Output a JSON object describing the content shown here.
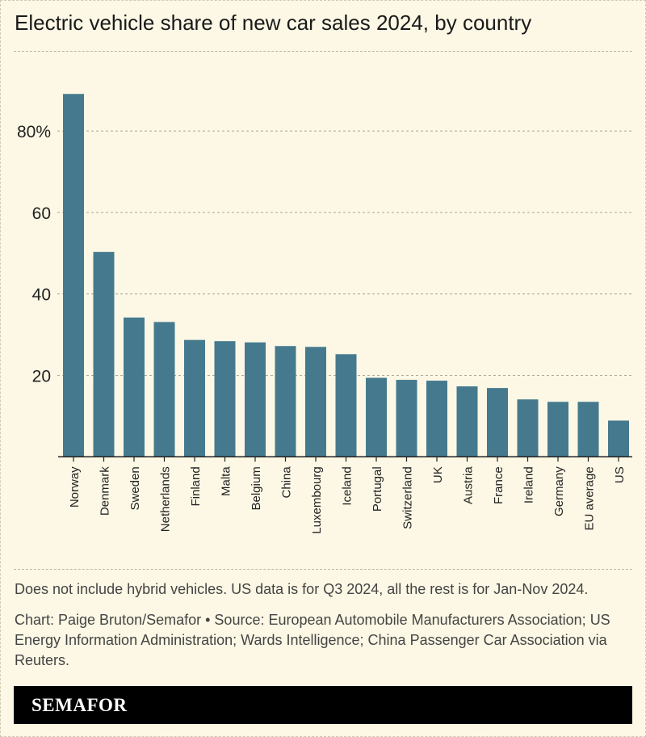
{
  "chart_data": {
    "type": "bar",
    "title": "Electric vehicle share of new car sales 2024, by country",
    "categories": [
      "Norway",
      "Denmark",
      "Sweden",
      "Netherlands",
      "Finland",
      "Malta",
      "Belgium",
      "China",
      "Luxembourg",
      "Iceland",
      "Portugal",
      "Switzerland",
      "UK",
      "Austria",
      "France",
      "Ireland",
      "Germany",
      "EU average",
      "US"
    ],
    "values": [
      89.1,
      50.3,
      34.2,
      33.1,
      28.7,
      28.4,
      28.1,
      27.2,
      27.0,
      25.2,
      19.4,
      18.9,
      18.7,
      17.3,
      16.9,
      14.1,
      13.5,
      13.5,
      8.9
    ],
    "ylim": [
      0,
      90
    ],
    "yticks": [
      20,
      40,
      60,
      80
    ],
    "ytick_labels": [
      "20",
      "40",
      "60",
      "80%"
    ],
    "xlabel": "",
    "ylabel": "",
    "grid": true,
    "bar_color": "#457a8e"
  },
  "footer": {
    "note": "Does not include hybrid vehicles. US data is for Q3 2024, all the rest is for Jan-Nov 2024.",
    "source": "Chart: Paige Bruton/Semafor • Source: European Automobile Manufacturers Association; US Energy Information Administration; Wards Intelligence; China Passenger Car Association via Reuters.",
    "brand": "SEMAFOR"
  }
}
